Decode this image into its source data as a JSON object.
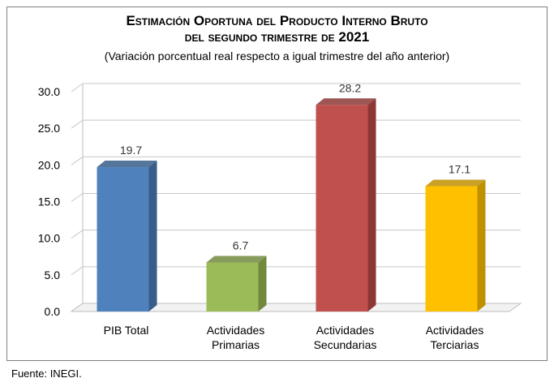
{
  "header": {
    "title_line1": "Estimación Oportuna del Producto Interno Bruto",
    "title_line2": "del segundo trimestre de 2021",
    "subtitle": "(Variación porcentual real respecto a igual trimestre del año anterior)"
  },
  "footer": {
    "source": "Fuente: INEGI."
  },
  "chart_data": {
    "type": "bar",
    "title": "Estimación Oportuna del Producto Interno Bruto del segundo trimestre de 2021",
    "subtitle": "(Variación porcentual real respecto a igual trimestre del año anterior)",
    "categories": [
      [
        "PIB Total"
      ],
      [
        "Actividades",
        "Primarias"
      ],
      [
        "Actividades",
        "Secundarias"
      ],
      [
        "Actividades",
        "Terciarias"
      ]
    ],
    "values": [
      19.7,
      6.7,
      28.2,
      17.1
    ],
    "data_labels": [
      "19.7",
      "6.7",
      "28.2",
      "17.1"
    ],
    "colors": [
      "#4f81bd",
      "#9bbb59",
      "#c0504d",
      "#ffc000"
    ],
    "side_colors": [
      "#385d8a",
      "#71893f",
      "#8c3836",
      "#bf9000"
    ],
    "ylim": [
      0,
      30
    ],
    "yticks": [
      "0.0",
      "5.0",
      "10.0",
      "15.0",
      "20.0",
      "25.0",
      "30.0"
    ],
    "grid": true,
    "xlabel": "",
    "ylabel": "",
    "legend": "none"
  }
}
